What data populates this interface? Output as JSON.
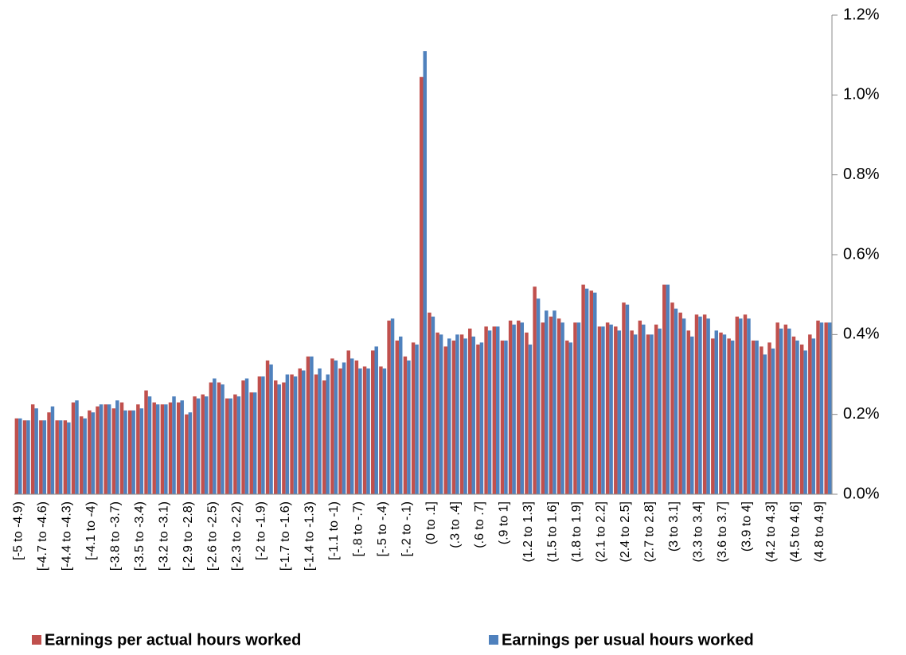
{
  "chart_data": {
    "type": "bar",
    "categories": [
      "[-5 to -4.9)",
      null,
      null,
      "[-4.7 to -4.6)",
      null,
      null,
      "[-4.4 to -4.3)",
      null,
      null,
      "[-4.1 to -4)",
      null,
      null,
      "[-3.8 to -3.7)",
      null,
      null,
      "[-3.5 to -3.4)",
      null,
      null,
      "[-3.2 to -3.1)",
      null,
      null,
      "[-2.9 to -2.8)",
      null,
      null,
      "[-2.6 to -2.5)",
      null,
      null,
      "[-2.3 to -2.2)",
      null,
      null,
      "[-2 to -1.9)",
      null,
      null,
      "[-1.7 to -1.6)",
      null,
      null,
      "[-1.4 to -1.3)",
      null,
      null,
      "[-1.1 to -1)",
      null,
      null,
      "[-.8 to -.7)",
      null,
      null,
      "[-.5 to -.4)",
      null,
      null,
      "[-.2 to -.1)",
      null,
      null,
      "(0 to .1]",
      null,
      null,
      "(.3 to .4]",
      null,
      null,
      "(.6 to .7]",
      null,
      null,
      "(.9 to 1]",
      null,
      null,
      "(1.2 to 1.3]",
      null,
      null,
      "(1.5 to 1.6]",
      null,
      null,
      "(1.8 to 1.9]",
      null,
      null,
      "(2.1 to 2.2]",
      null,
      null,
      "(2.4 to 2.5]",
      null,
      null,
      "(2.7 to 2.8]",
      null,
      null,
      "(3 to 3.1]",
      null,
      null,
      "(3.3 to 3.4]",
      null,
      null,
      "(3.6 to 3.7]",
      null,
      null,
      "(3.9 to 4]",
      null,
      null,
      "(4.2 to 4.3]",
      null,
      null,
      "(4.5 to 4.6]",
      null,
      null,
      "(4.8 to 4.9]",
      null
    ],
    "series": [
      {
        "name": "Earnings per actual hours worked",
        "color": "#c0504d",
        "values": [
          0.19,
          0.185,
          0.225,
          0.185,
          0.205,
          0.185,
          0.185,
          0.23,
          0.195,
          0.21,
          0.22,
          0.225,
          0.215,
          0.23,
          0.21,
          0.225,
          0.26,
          0.23,
          0.225,
          0.23,
          0.23,
          0.2,
          0.245,
          0.25,
          0.28,
          0.28,
          0.24,
          0.25,
          0.285,
          0.255,
          0.295,
          0.335,
          0.285,
          0.28,
          0.3,
          0.315,
          0.345,
          0.3,
          0.285,
          0.34,
          0.315,
          0.36,
          0.335,
          0.32,
          0.36,
          0.32,
          0.435,
          0.385,
          0.345,
          0.38,
          1.045,
          0.455,
          0.405,
          0.37,
          0.385,
          0.4,
          0.415,
          0.375,
          0.42,
          0.42,
          0.385,
          0.435,
          0.435,
          0.405,
          0.52,
          0.43,
          0.445,
          0.44,
          0.385,
          0.43,
          0.525,
          0.51,
          0.42,
          0.43,
          0.42,
          0.48,
          0.41,
          0.435,
          0.4,
          0.425,
          0.525,
          0.48,
          0.455,
          0.41,
          0.45,
          0.45,
          0.39,
          0.405,
          0.39,
          0.445,
          0.45,
          0.385,
          0.37,
          0.38,
          0.43,
          0.425,
          0.395,
          0.375,
          0.4,
          0.435,
          0.43
        ]
      },
      {
        "name": "Earnings per usual hours worked",
        "color": "#4f81bd",
        "values": [
          0.19,
          0.185,
          0.215,
          0.185,
          0.22,
          0.185,
          0.18,
          0.235,
          0.19,
          0.205,
          0.225,
          0.225,
          0.235,
          0.21,
          0.21,
          0.215,
          0.245,
          0.225,
          0.225,
          0.245,
          0.235,
          0.205,
          0.24,
          0.245,
          0.29,
          0.275,
          0.24,
          0.245,
          0.29,
          0.255,
          0.295,
          0.325,
          0.275,
          0.3,
          0.295,
          0.31,
          0.345,
          0.315,
          0.3,
          0.335,
          0.33,
          0.34,
          0.315,
          0.315,
          0.37,
          0.315,
          0.44,
          0.395,
          0.335,
          0.375,
          1.11,
          0.445,
          0.4,
          0.39,
          0.4,
          0.39,
          0.395,
          0.38,
          0.41,
          0.42,
          0.385,
          0.425,
          0.43,
          0.375,
          0.49,
          0.46,
          0.46,
          0.43,
          0.38,
          0.43,
          0.515,
          0.505,
          0.42,
          0.425,
          0.41,
          0.475,
          0.4,
          0.425,
          0.4,
          0.415,
          0.525,
          0.465,
          0.44,
          0.395,
          0.445,
          0.44,
          0.41,
          0.4,
          0.385,
          0.44,
          0.44,
          0.385,
          0.35,
          0.365,
          0.415,
          0.415,
          0.385,
          0.36,
          0.39,
          0.43,
          0.43
        ]
      }
    ],
    "ylim": [
      0,
      1.2
    ],
    "yticks": [
      {
        "value": 0,
        "label": "0.0%"
      },
      {
        "value": 0.2,
        "label": "0.2%"
      },
      {
        "value": 0.4,
        "label": "0.4%"
      },
      {
        "value": 0.6,
        "label": "0.6%"
      },
      {
        "value": 0.8,
        "label": "0.8%"
      },
      {
        "value": 1.0,
        "label": "1.0%"
      },
      {
        "value": 1.2,
        "label": "1.2%"
      }
    ],
    "y_axis_side": "right",
    "legend": "bottom"
  }
}
